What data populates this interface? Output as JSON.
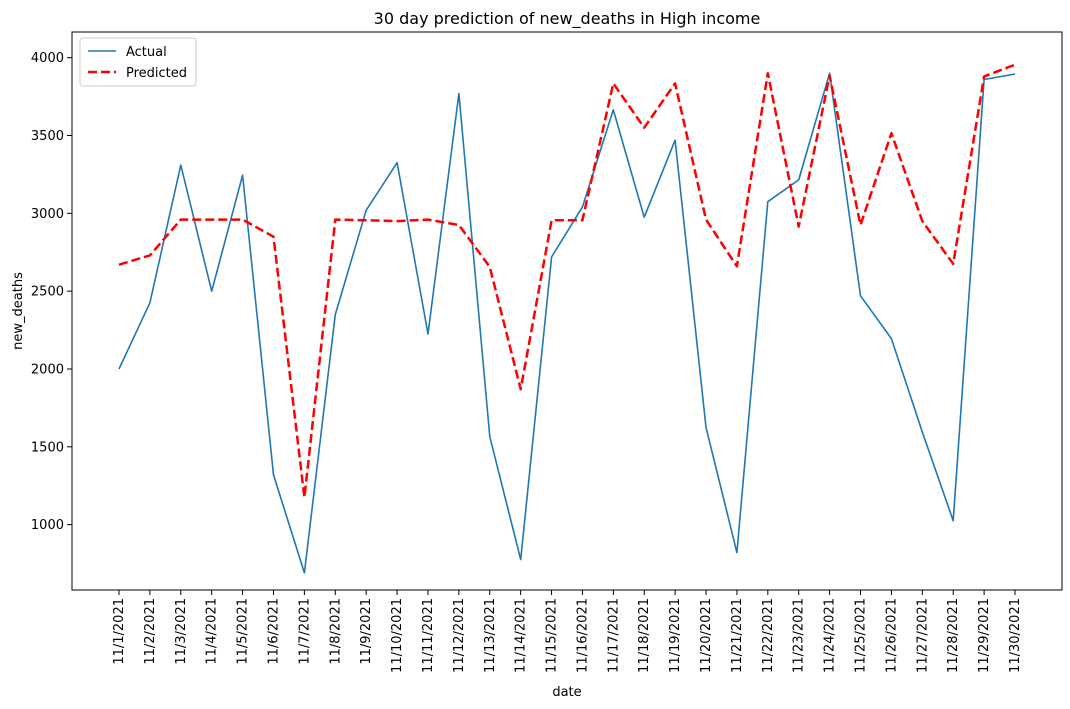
{
  "chart_data": {
    "type": "line",
    "title": "30 day prediction of new_deaths in High income",
    "xlabel": "date",
    "ylabel": "new_deaths",
    "x": [
      "11/1/2021",
      "11/2/2021",
      "11/3/2021",
      "11/4/2021",
      "11/5/2021",
      "11/6/2021",
      "11/7/2021",
      "11/8/2021",
      "11/9/2021",
      "11/10/2021",
      "11/11/2021",
      "11/12/2021",
      "11/13/2021",
      "11/14/2021",
      "11/15/2021",
      "11/16/2021",
      "11/17/2021",
      "11/18/2021",
      "11/19/2021",
      "11/20/2021",
      "11/21/2021",
      "11/22/2021",
      "11/23/2021",
      "11/24/2021",
      "11/25/2021",
      "11/26/2021",
      "11/27/2021",
      "11/28/2021",
      "11/29/2021",
      "11/30/2021"
    ],
    "yticks": [
      1000,
      1500,
      2000,
      2500,
      3000,
      3500,
      4000
    ],
    "ylim": [
      580,
      4165
    ],
    "grid": false,
    "legend_position": "top-left",
    "series": [
      {
        "name": "Actual",
        "color": "#1f77b4",
        "style": "solid",
        "values": [
          2000,
          2425,
          3310,
          2500,
          3245,
          1320,
          690,
          2350,
          3020,
          3325,
          2225,
          3770,
          1565,
          775,
          2720,
          3040,
          3665,
          2975,
          3470,
          1625,
          820,
          3075,
          3215,
          3900,
          2470,
          2195,
          1595,
          1025,
          3860,
          3895
        ]
      },
      {
        "name": "Predicted",
        "color": "#ff0000",
        "style": "dashed",
        "values": [
          2670,
          2730,
          2960,
          2960,
          2960,
          2850,
          1175,
          2960,
          2955,
          2950,
          2960,
          2925,
          2655,
          1870,
          2955,
          2955,
          3835,
          3550,
          3835,
          2960,
          2660,
          3900,
          2915,
          3885,
          2925,
          3515,
          2950,
          2675,
          3880,
          3955
        ]
      }
    ]
  }
}
